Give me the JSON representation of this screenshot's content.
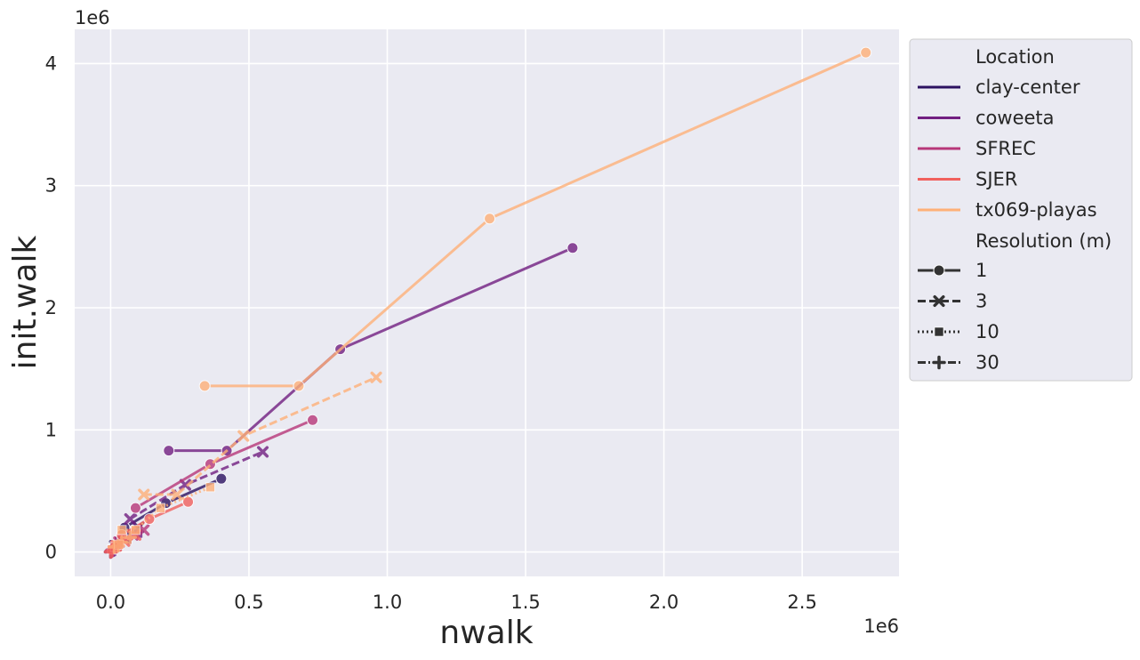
{
  "chart_data": {
    "type": "line",
    "title": "",
    "xlabel": "nwalk",
    "ylabel": "init.walk",
    "x_offset_label": "1e6",
    "y_offset_label": "1e6",
    "xlim": [
      -0.13,
      2.85
    ],
    "ylim": [
      -0.2,
      4.28
    ],
    "xticks": [
      0,
      0.5,
      1.0,
      1.5,
      2.0,
      2.5
    ],
    "xtick_labels": [
      "0.0",
      "0.5",
      "1.0",
      "1.5",
      "2.0",
      "2.5"
    ],
    "yticks": [
      0,
      1,
      2,
      3,
      4
    ],
    "ytick_labels": [
      "0",
      "1",
      "2",
      "3",
      "4"
    ],
    "grid": true,
    "background": "#eaeaf2",
    "legend_position": "outside-right",
    "legend": {
      "hue_title": "Location",
      "hue_entries": [
        {
          "name": "clay-center",
          "color": "#2c1160"
        },
        {
          "name": "coweeta",
          "color": "#721f81"
        },
        {
          "name": "SFREC",
          "color": "#b73779"
        },
        {
          "name": "SJER",
          "color": "#f1605d"
        },
        {
          "name": "tx069-playas",
          "color": "#feb078"
        }
      ],
      "style_title": "Resolution (m)",
      "style_entries": [
        {
          "name": "1",
          "marker": "circle",
          "dash": "solid"
        },
        {
          "name": "3",
          "marker": "x",
          "dash": "dashed"
        },
        {
          "name": "10",
          "marker": "square",
          "dash": "dotted"
        },
        {
          "name": "30",
          "marker": "plus",
          "dash": "dashdot"
        }
      ]
    },
    "series": [
      {
        "location": "clay-center",
        "resolution": "1",
        "color": "#2c1160",
        "marker": "circle",
        "dash": "solid",
        "x": [
          0.05,
          0.2,
          0.4
        ],
        "y": [
          0.2,
          0.4,
          0.6
        ]
      },
      {
        "location": "clay-center",
        "resolution": "3",
        "color": "#2c1160",
        "marker": "x",
        "dash": "dashed",
        "x": [
          0.015,
          0.05,
          0.1
        ],
        "y": [
          0.05,
          0.13,
          0.2
        ]
      },
      {
        "location": "clay-center",
        "resolution": "10",
        "color": "#2c1160",
        "marker": "square",
        "dash": "dotted",
        "x": [
          0.005,
          0.015,
          0.03
        ],
        "y": [
          0.02,
          0.05,
          0.09
        ]
      },
      {
        "location": "clay-center",
        "resolution": "30",
        "color": "#2c1160",
        "marker": "plus",
        "dash": "dashdot",
        "x": [
          0.0,
          0.005,
          0.01
        ],
        "y": [
          0.0,
          0.01,
          0.02
        ]
      },
      {
        "location": "coweeta",
        "resolution": "1",
        "color": "#721f81",
        "marker": "circle",
        "dash": "solid",
        "x": [
          0.21,
          0.42,
          0.83,
          1.67
        ],
        "y": [
          0.83,
          0.83,
          1.66,
          2.49
        ]
      },
      {
        "location": "coweeta",
        "resolution": "3",
        "color": "#721f81",
        "marker": "x",
        "dash": "dashed",
        "x": [
          0.07,
          0.27,
          0.55
        ],
        "y": [
          0.27,
          0.55,
          0.82
        ]
      },
      {
        "location": "coweeta",
        "resolution": "10",
        "color": "#721f81",
        "marker": "square",
        "dash": "dotted",
        "x": [
          0.02,
          0.06,
          0.1
        ],
        "y": [
          0.05,
          0.1,
          0.15
        ]
      },
      {
        "location": "coweeta",
        "resolution": "30",
        "color": "#721f81",
        "marker": "plus",
        "dash": "dashdot",
        "x": [
          0.003,
          0.01,
          0.015
        ],
        "y": [
          0.01,
          0.015,
          0.02
        ]
      },
      {
        "location": "SFREC",
        "resolution": "1",
        "color": "#b73779",
        "marker": "circle",
        "dash": "solid",
        "x": [
          0.09,
          0.36,
          0.73
        ],
        "y": [
          0.36,
          0.72,
          1.08
        ]
      },
      {
        "location": "SFREC",
        "resolution": "3",
        "color": "#b73779",
        "marker": "x",
        "dash": "dashed",
        "x": [
          0.03,
          0.08,
          0.12
        ],
        "y": [
          0.08,
          0.14,
          0.18
        ]
      },
      {
        "location": "SFREC",
        "resolution": "10",
        "color": "#b73779",
        "marker": "square",
        "dash": "dotted",
        "x": [
          0.01,
          0.02,
          0.04
        ],
        "y": [
          0.02,
          0.05,
          0.1
        ]
      },
      {
        "location": "SFREC",
        "resolution": "30",
        "color": "#b73779",
        "marker": "plus",
        "dash": "dashdot",
        "x": [
          0.002,
          0.004,
          0.008
        ],
        "y": [
          0.005,
          0.01,
          0.02
        ]
      },
      {
        "location": "SJER",
        "resolution": "1",
        "color": "#f1605d",
        "marker": "circle",
        "dash": "solid",
        "x": [
          0.04,
          0.14,
          0.28
        ],
        "y": [
          0.14,
          0.27,
          0.41
        ]
      },
      {
        "location": "SJER",
        "resolution": "3",
        "color": "#f1605d",
        "marker": "x",
        "dash": "dashed",
        "x": [
          0.02,
          0.05,
          0.09
        ],
        "y": [
          0.05,
          0.09,
          0.14
        ]
      },
      {
        "location": "SJER",
        "resolution": "10",
        "color": "#f1605d",
        "marker": "square",
        "dash": "dotted",
        "x": [
          0.005,
          0.015,
          0.03
        ],
        "y": [
          0.02,
          0.04,
          0.06
        ]
      },
      {
        "location": "SJER",
        "resolution": "30",
        "color": "#f1605d",
        "marker": "plus",
        "dash": "dashdot",
        "x": [
          0.0,
          0.003,
          0.005
        ],
        "y": [
          0.0,
          0.005,
          0.01
        ]
      },
      {
        "location": "tx069-playas",
        "resolution": "1",
        "color": "#feb078",
        "marker": "circle",
        "dash": "solid",
        "x": [
          0.34,
          0.68,
          1.37,
          2.73
        ],
        "y": [
          1.36,
          1.36,
          2.73,
          4.09
        ]
      },
      {
        "location": "tx069-playas",
        "resolution": "3",
        "color": "#feb078",
        "marker": "x",
        "dash": "dashed",
        "x": [
          0.12,
          0.24,
          0.48,
          0.96
        ],
        "y": [
          0.47,
          0.47,
          0.95,
          1.43
        ]
      },
      {
        "location": "tx069-playas",
        "resolution": "10",
        "color": "#feb078",
        "marker": "square",
        "dash": "dotted",
        "x": [
          0.04,
          0.09,
          0.18,
          0.36
        ],
        "y": [
          0.18,
          0.18,
          0.36,
          0.53
        ]
      },
      {
        "location": "tx069-playas",
        "resolution": "30",
        "color": "#feb078",
        "marker": "plus",
        "dash": "dashdot",
        "x": [
          0.013,
          0.027,
          0.04,
          0.07
        ],
        "y": [
          0.04,
          0.05,
          0.08,
          0.12
        ]
      }
    ]
  }
}
